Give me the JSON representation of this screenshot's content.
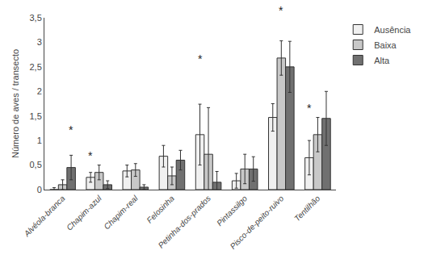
{
  "chart_data": {
    "type": "bar",
    "ylabel": "Número de aves / transecto",
    "categories": [
      "Alvéola-branca",
      "Chapim-azul",
      "Chapim-real",
      "Felosinha",
      "Petinha-dos-prados",
      "Pintassilgo",
      "Pisco-de-peito-ruivo",
      "Tentilhão"
    ],
    "series": [
      {
        "name": "Ausência",
        "color": "#f0f0f0",
        "values": [
          0.0,
          0.25,
          0.38,
          0.68,
          1.12,
          0.18,
          1.47,
          0.65
        ],
        "errors": [
          0.04,
          0.1,
          0.12,
          0.22,
          0.62,
          0.15,
          0.28,
          0.35
        ]
      },
      {
        "name": "Baixa",
        "color": "#c8c8c8",
        "values": [
          0.1,
          0.35,
          0.4,
          0.28,
          0.72,
          0.42,
          2.68,
          1.12
        ],
        "errors": [
          0.1,
          0.15,
          0.13,
          0.18,
          0.95,
          0.3,
          0.35,
          0.35
        ]
      },
      {
        "name": "Alta",
        "color": "#707070",
        "values": [
          0.45,
          0.1,
          0.05,
          0.6,
          0.15,
          0.42,
          2.5,
          1.45
        ],
        "errors": [
          0.25,
          0.08,
          0.05,
          0.2,
          0.22,
          0.25,
          0.52,
          0.55
        ]
      }
    ],
    "ylim": [
      0,
      3.5
    ],
    "yticks": [
      0,
      {
        "value": 0.5,
        "label": "0,5"
      },
      1,
      {
        "value": 1.5,
        "label": "1,5"
      },
      2,
      {
        "value": 2.5,
        "label": "2,5"
      },
      3,
      {
        "value": 3.5,
        "label": "3,5"
      }
    ],
    "annotations": [
      {
        "text": "*",
        "x": "Alvéola-branca",
        "series": "Alta",
        "y": 1.05
      },
      {
        "text": "*",
        "x": "Chapim-azul",
        "series": "Ausência",
        "y": 0.53
      },
      {
        "text": "*",
        "x": "Petinha-dos-prados",
        "series": "Ausência",
        "y": 2.49
      },
      {
        "text": "*",
        "x": "Pisco-de-peito-ruivo",
        "series": "Baixa",
        "y": 3.48
      },
      {
        "text": "*",
        "x": "Tentilhão",
        "series": "Ausência",
        "y": 1.5
      }
    ],
    "grid": false,
    "legend": "right"
  }
}
